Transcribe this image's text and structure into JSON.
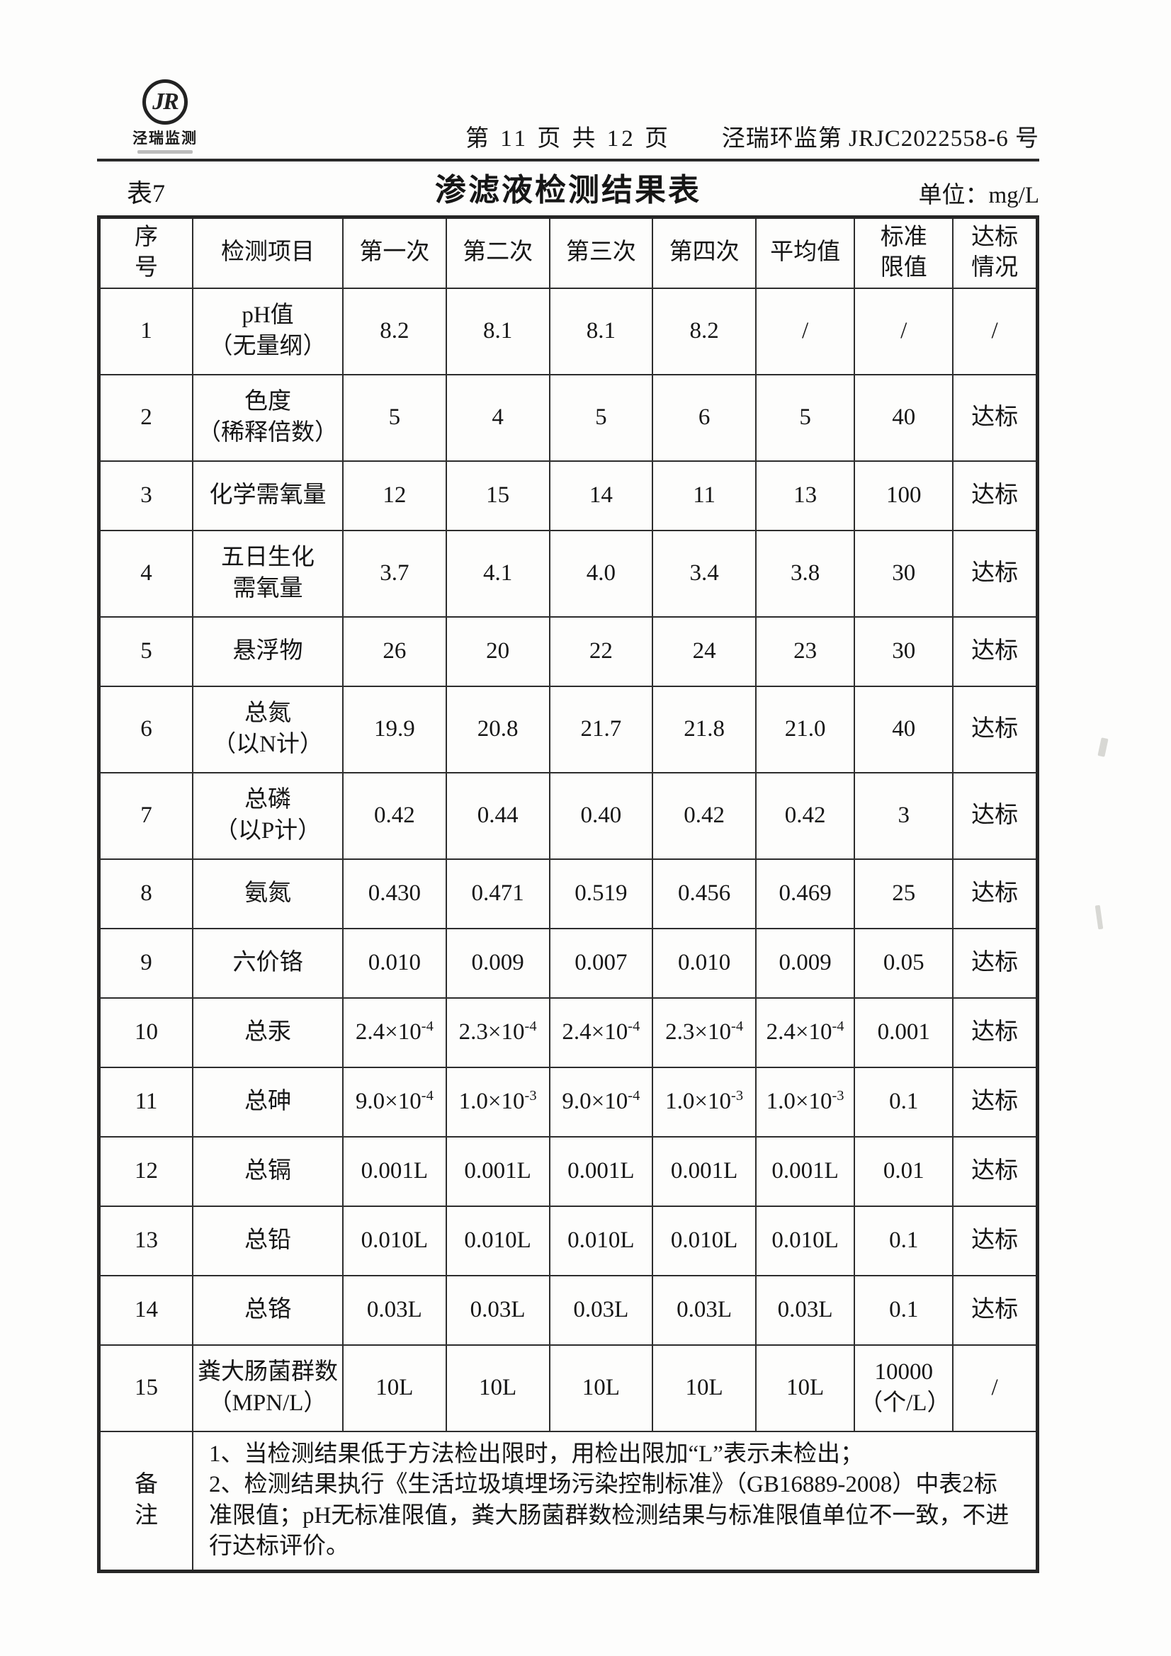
{
  "header": {
    "logo_monogram": "JR",
    "logo_company": "泾瑞监测",
    "page_info": "第 11 页 共 12 页",
    "doc_number": "泾瑞环监第 JRJC2022558-6 号"
  },
  "table_meta": {
    "table_label": "表7",
    "title": "渗滤液检测结果表",
    "unit_label": "单位：mg/L"
  },
  "columns": {
    "no": "序\n号",
    "item": "检测项目",
    "t1": "第一次",
    "t2": "第二次",
    "t3": "第三次",
    "t4": "第四次",
    "avg": "平均值",
    "limit": "标准\n限值",
    "status": "达标\n情况"
  },
  "rows": [
    {
      "no": "1",
      "item": "pH值\n（无量纲）",
      "v1": "8.2",
      "v2": "8.1",
      "v3": "8.1",
      "v4": "8.2",
      "avg": "/",
      "limit": "/",
      "status": "/"
    },
    {
      "no": "2",
      "item": "色度\n（稀释倍数）",
      "v1": "5",
      "v2": "4",
      "v3": "5",
      "v4": "6",
      "avg": "5",
      "limit": "40",
      "status": "达标"
    },
    {
      "no": "3",
      "item": "化学需氧量",
      "v1": "12",
      "v2": "15",
      "v3": "14",
      "v4": "11",
      "avg": "13",
      "limit": "100",
      "status": "达标"
    },
    {
      "no": "4",
      "item": "五日生化\n需氧量",
      "v1": "3.7",
      "v2": "4.1",
      "v3": "4.0",
      "v4": "3.4",
      "avg": "3.8",
      "limit": "30",
      "status": "达标"
    },
    {
      "no": "5",
      "item": "悬浮物",
      "v1": "26",
      "v2": "20",
      "v3": "22",
      "v4": "24",
      "avg": "23",
      "limit": "30",
      "status": "达标"
    },
    {
      "no": "6",
      "item": "总氮\n（以N计）",
      "v1": "19.9",
      "v2": "20.8",
      "v3": "21.7",
      "v4": "21.8",
      "avg": "21.0",
      "limit": "40",
      "status": "达标"
    },
    {
      "no": "7",
      "item": "总磷\n（以P计）",
      "v1": "0.42",
      "v2": "0.44",
      "v3": "0.40",
      "v4": "0.42",
      "avg": "0.42",
      "limit": "3",
      "status": "达标"
    },
    {
      "no": "8",
      "item": "氨氮",
      "v1": "0.430",
      "v2": "0.471",
      "v3": "0.519",
      "v4": "0.456",
      "avg": "0.469",
      "limit": "25",
      "status": "达标"
    },
    {
      "no": "9",
      "item": "六价铬",
      "v1": "0.010",
      "v2": "0.009",
      "v3": "0.007",
      "v4": "0.010",
      "avg": "0.009",
      "limit": "0.05",
      "status": "达标"
    },
    {
      "no": "10",
      "item": "总汞",
      "v1": "2.4×10^-4",
      "v2": "2.3×10^-4",
      "v3": "2.4×10^-4",
      "v4": "2.3×10^-4",
      "avg": "2.4×10^-4",
      "limit": "0.001",
      "status": "达标"
    },
    {
      "no": "11",
      "item": "总砷",
      "v1": "9.0×10^-4",
      "v2": "1.0×10^-3",
      "v3": "9.0×10^-4",
      "v4": "1.0×10^-3",
      "avg": "1.0×10^-3",
      "limit": "0.1",
      "status": "达标"
    },
    {
      "no": "12",
      "item": "总镉",
      "v1": "0.001L",
      "v2": "0.001L",
      "v3": "0.001L",
      "v4": "0.001L",
      "avg": "0.001L",
      "limit": "0.01",
      "status": "达标"
    },
    {
      "no": "13",
      "item": "总铅",
      "v1": "0.010L",
      "v2": "0.010L",
      "v3": "0.010L",
      "v4": "0.010L",
      "avg": "0.010L",
      "limit": "0.1",
      "status": "达标"
    },
    {
      "no": "14",
      "item": "总铬",
      "v1": "0.03L",
      "v2": "0.03L",
      "v3": "0.03L",
      "v4": "0.03L",
      "avg": "0.03L",
      "limit": "0.1",
      "status": "达标"
    },
    {
      "no": "15",
      "item": "粪大肠菌群数\n（MPN/L）",
      "v1": "10L",
      "v2": "10L",
      "v3": "10L",
      "v4": "10L",
      "avg": "10L",
      "limit": "10000\n（个/L）",
      "status": "/"
    }
  ],
  "remarks": {
    "label": "备\n注",
    "line1": "1、当检测结果低于方法检出限时，用检出限加“L”表示未检出；",
    "line2": "2、检测结果执行《生活垃圾填埋场污染控制标准》（GB16889-2008）中表2标准限值；pH无标准限值，粪大肠菌群数检测结果与标准限值单位不一致，不进行达标评价。"
  }
}
